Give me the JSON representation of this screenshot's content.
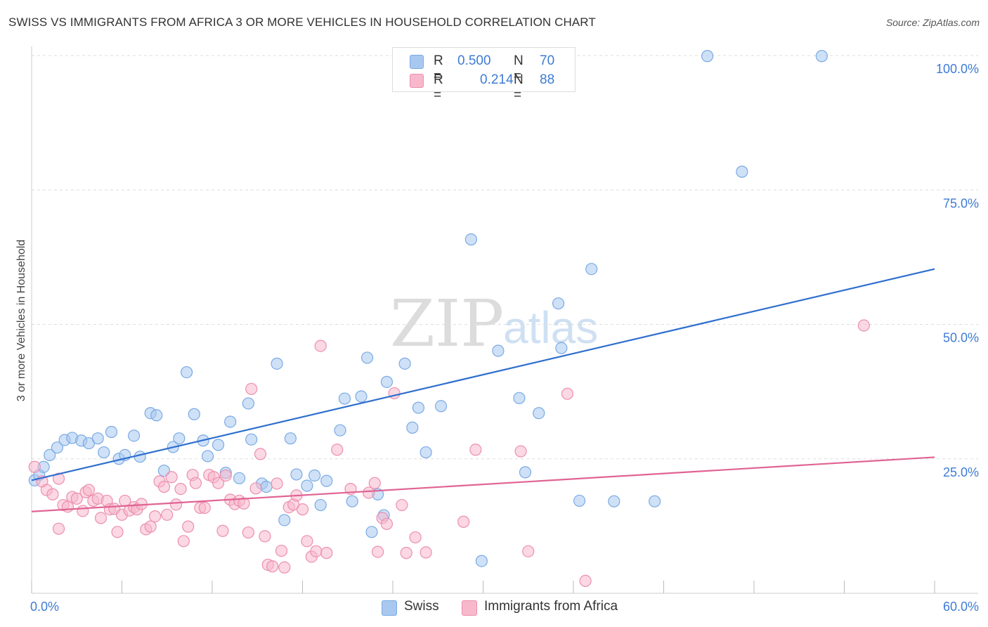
{
  "title": "SWISS VS IMMIGRANTS FROM AFRICA 3 OR MORE VEHICLES IN HOUSEHOLD CORRELATION CHART",
  "source": "Source: ZipAtlas.com",
  "watermark": {
    "zip": "ZIP",
    "atlas": "atlas"
  },
  "legend": {
    "rows": [
      {
        "r_label": "R =",
        "r_value": "0.500",
        "n_label": "N =",
        "n_value": "70",
        "color": "#a8c8f0"
      },
      {
        "r_label": "R =",
        "r_value": "0.214",
        "n_label": "N =",
        "n_value": "88",
        "color": "#f7b8cc"
      }
    ]
  },
  "bottom_legend": [
    {
      "label": "Swiss",
      "color": "#a8c8f0"
    },
    {
      "label": "Immigrants from Africa",
      "color": "#f7b8cc"
    }
  ],
  "chart_data": {
    "type": "scatter",
    "xlabel": "",
    "ylabel": "3 or more Vehicles in Household",
    "xlim": [
      0,
      60
    ],
    "ylim": [
      0,
      100
    ],
    "x_tick_labels": [
      "0.0%",
      "60.0%"
    ],
    "y_tick_labels": [
      "100.0%",
      "75.0%",
      "50.0%",
      "25.0%"
    ],
    "y_ticks": [
      100,
      75,
      50,
      25
    ],
    "grid": "horizontal dashed",
    "series": [
      {
        "name": "Swiss",
        "color": "#a8c8f0",
        "stroke": "#7aaae4",
        "trend": {
          "x": [
            0,
            60
          ],
          "y": [
            21.0,
            60.3
          ],
          "color": "#2f6fce"
        },
        "points": [
          [
            0.2,
            21.0
          ],
          [
            0.5,
            22.0
          ],
          [
            0.8,
            23.5
          ],
          [
            1.2,
            25.7
          ],
          [
            1.7,
            27.1
          ],
          [
            2.2,
            28.5
          ],
          [
            2.7,
            28.9
          ],
          [
            3.3,
            28.4
          ],
          [
            3.8,
            27.9
          ],
          [
            4.4,
            28.8
          ],
          [
            4.8,
            26.2
          ],
          [
            5.3,
            30.0
          ],
          [
            5.8,
            25.0
          ],
          [
            6.2,
            25.7
          ],
          [
            6.8,
            29.3
          ],
          [
            7.2,
            25.4
          ],
          [
            7.9,
            33.5
          ],
          [
            8.3,
            33.1
          ],
          [
            8.8,
            22.8
          ],
          [
            9.4,
            27.2
          ],
          [
            9.8,
            28.8
          ],
          [
            10.3,
            41.1
          ],
          [
            10.8,
            33.3
          ],
          [
            11.4,
            28.4
          ],
          [
            11.7,
            25.5
          ],
          [
            12.4,
            27.6
          ],
          [
            12.9,
            22.4
          ],
          [
            13.2,
            31.9
          ],
          [
            13.8,
            21.4
          ],
          [
            14.4,
            35.3
          ],
          [
            14.6,
            28.6
          ],
          [
            15.3,
            20.4
          ],
          [
            15.6,
            19.8
          ],
          [
            16.3,
            42.7
          ],
          [
            16.8,
            13.6
          ],
          [
            17.2,
            28.8
          ],
          [
            17.6,
            22.1
          ],
          [
            18.3,
            20.0
          ],
          [
            18.8,
            21.9
          ],
          [
            19.2,
            16.4
          ],
          [
            19.6,
            20.9
          ],
          [
            20.5,
            30.3
          ],
          [
            20.8,
            36.2
          ],
          [
            21.3,
            17.1
          ],
          [
            21.9,
            36.6
          ],
          [
            22.3,
            43.8
          ],
          [
            22.6,
            11.4
          ],
          [
            23.0,
            18.4
          ],
          [
            23.4,
            14.5
          ],
          [
            23.6,
            39.3
          ],
          [
            24.8,
            42.7
          ],
          [
            25.3,
            30.8
          ],
          [
            25.7,
            34.5
          ],
          [
            26.2,
            26.2
          ],
          [
            27.2,
            34.8
          ],
          [
            29.2,
            65.8
          ],
          [
            29.9,
            6.0
          ],
          [
            31.0,
            45.1
          ],
          [
            32.4,
            36.3
          ],
          [
            32.8,
            22.5
          ],
          [
            33.7,
            33.5
          ],
          [
            35.0,
            53.9
          ],
          [
            35.2,
            45.6
          ],
          [
            36.4,
            17.2
          ],
          [
            37.2,
            60.3
          ],
          [
            38.7,
            17.1
          ],
          [
            41.4,
            17.1
          ],
          [
            44.9,
            99.9
          ],
          [
            47.2,
            78.4
          ],
          [
            52.5,
            99.9
          ]
        ]
      },
      {
        "name": "Immigrants from Africa",
        "color": "#f7b8cc",
        "stroke": "#ec8fae",
        "trend": {
          "x": [
            0,
            60
          ],
          "y": [
            15.2,
            25.3
          ],
          "color": "#e06493"
        },
        "points": [
          [
            0.2,
            23.5
          ],
          [
            0.7,
            20.8
          ],
          [
            1.0,
            19.2
          ],
          [
            1.4,
            18.4
          ],
          [
            1.8,
            12.0
          ],
          [
            2.1,
            16.4
          ],
          [
            2.4,
            16.1
          ],
          [
            2.7,
            17.9
          ],
          [
            3.0,
            17.6
          ],
          [
            3.4,
            15.3
          ],
          [
            3.6,
            18.8
          ],
          [
            3.8,
            19.2
          ],
          [
            4.1,
            17.2
          ],
          [
            4.4,
            17.6
          ],
          [
            4.6,
            14.0
          ],
          [
            5.0,
            17.2
          ],
          [
            5.2,
            15.6
          ],
          [
            5.5,
            15.7
          ],
          [
            5.7,
            11.4
          ],
          [
            6.0,
            14.6
          ],
          [
            6.2,
            17.2
          ],
          [
            6.5,
            15.4
          ],
          [
            6.8,
            16.0
          ],
          [
            7.0,
            15.6
          ],
          [
            7.3,
            16.6
          ],
          [
            7.6,
            11.9
          ],
          [
            7.9,
            12.4
          ],
          [
            8.2,
            14.3
          ],
          [
            8.5,
            20.8
          ],
          [
            8.8,
            19.8
          ],
          [
            9.0,
            14.6
          ],
          [
            9.3,
            21.6
          ],
          [
            9.6,
            16.5
          ],
          [
            9.9,
            19.4
          ],
          [
            10.1,
            9.7
          ],
          [
            10.4,
            12.4
          ],
          [
            10.7,
            22.0
          ],
          [
            10.9,
            20.5
          ],
          [
            11.2,
            15.9
          ],
          [
            11.5,
            15.9
          ],
          [
            11.8,
            22.0
          ],
          [
            12.1,
            21.6
          ],
          [
            12.4,
            20.5
          ],
          [
            12.7,
            11.6
          ],
          [
            12.9,
            21.9
          ],
          [
            13.2,
            17.4
          ],
          [
            13.5,
            16.6
          ],
          [
            13.8,
            17.2
          ],
          [
            14.1,
            16.7
          ],
          [
            14.4,
            11.3
          ],
          [
            14.6,
            38.0
          ],
          [
            14.9,
            19.5
          ],
          [
            15.2,
            25.9
          ],
          [
            15.5,
            10.6
          ],
          [
            15.7,
            5.3
          ],
          [
            16.0,
            5.0
          ],
          [
            16.3,
            20.4
          ],
          [
            16.6,
            7.9
          ],
          [
            16.8,
            4.8
          ],
          [
            17.1,
            16.0
          ],
          [
            17.4,
            16.5
          ],
          [
            17.6,
            18.2
          ],
          [
            18.0,
            15.6
          ],
          [
            18.3,
            9.7
          ],
          [
            18.6,
            6.8
          ],
          [
            18.9,
            7.8
          ],
          [
            19.2,
            46.0
          ],
          [
            19.6,
            7.5
          ],
          [
            20.3,
            26.7
          ],
          [
            21.2,
            19.4
          ],
          [
            22.4,
            18.7
          ],
          [
            22.8,
            20.5
          ],
          [
            23.3,
            14.0
          ],
          [
            23.6,
            12.9
          ],
          [
            24.1,
            37.2
          ],
          [
            24.6,
            16.4
          ],
          [
            24.9,
            7.5
          ],
          [
            25.5,
            10.4
          ],
          [
            26.2,
            7.6
          ],
          [
            28.7,
            13.3
          ],
          [
            29.5,
            26.7
          ],
          [
            32.5,
            26.4
          ],
          [
            33.0,
            7.8
          ],
          [
            35.6,
            37.1
          ],
          [
            36.8,
            2.3
          ],
          [
            55.3,
            49.8
          ],
          [
            1.8,
            21.3
          ],
          [
            23.0,
            7.7
          ]
        ]
      }
    ]
  }
}
